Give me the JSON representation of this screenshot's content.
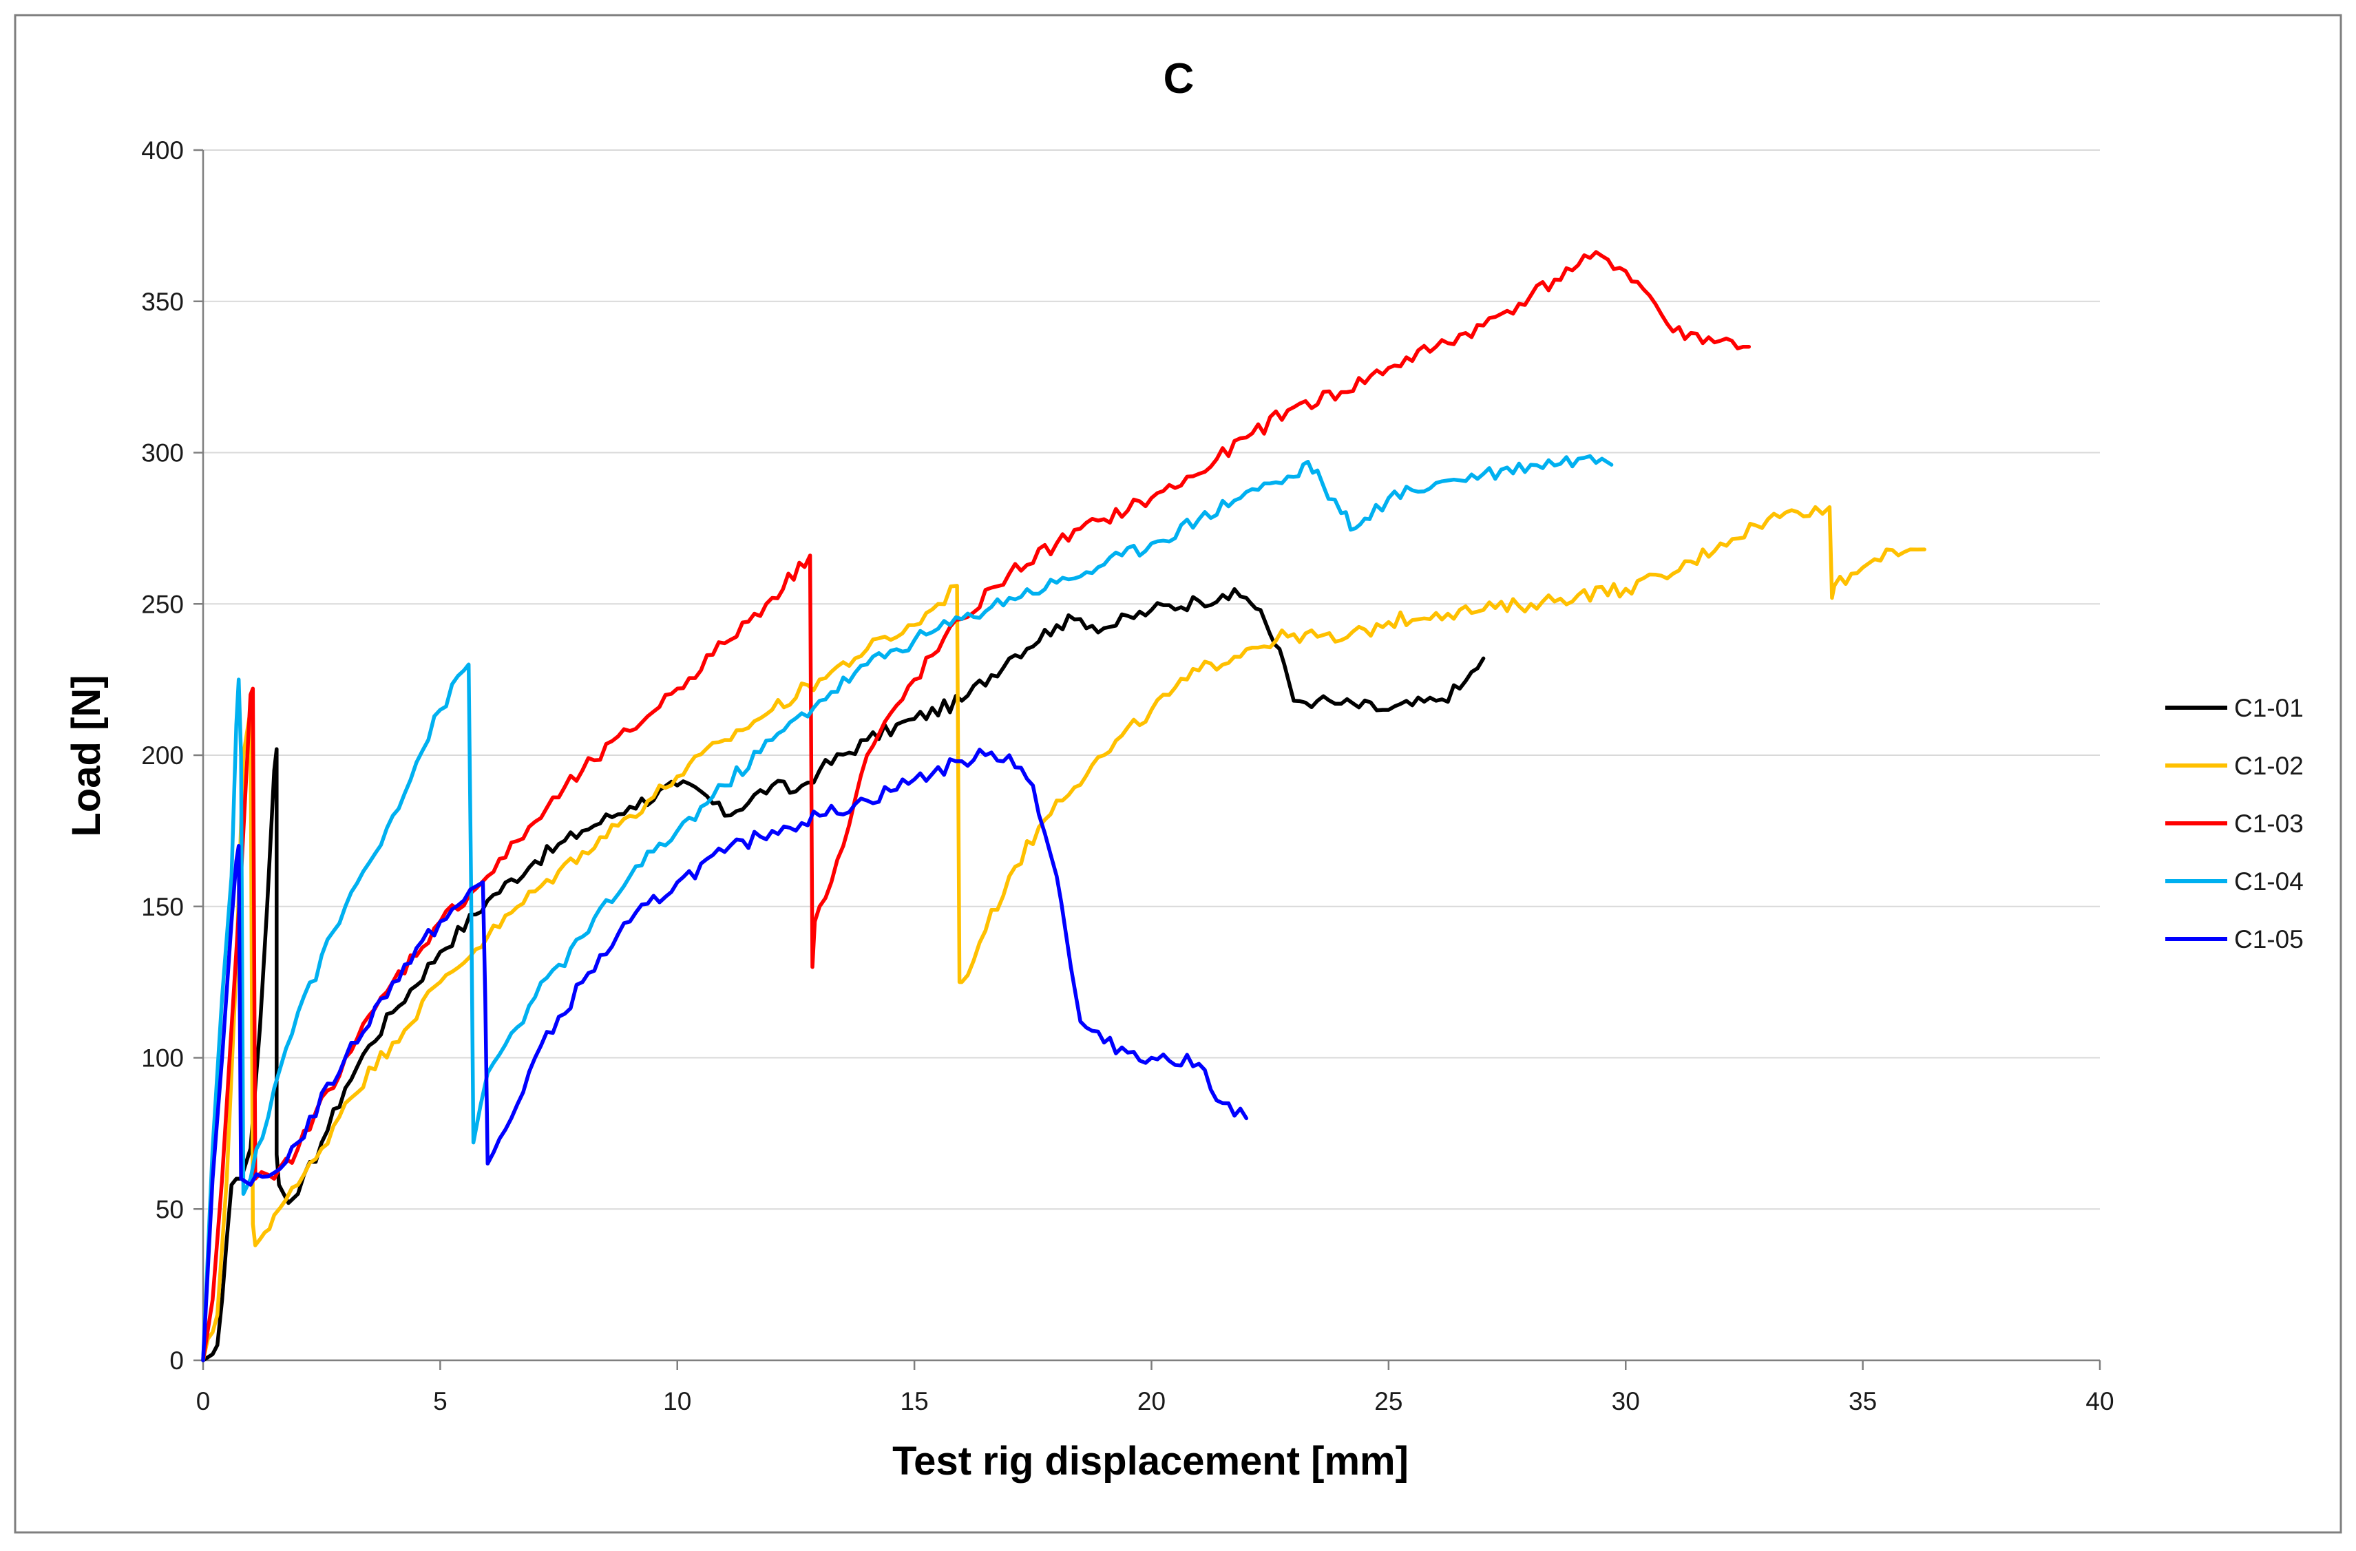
{
  "chart_data": {
    "type": "line",
    "title": "C",
    "xlabel": "Test rig displacement [mm]",
    "ylabel": "Load [N]",
    "xlim": [
      0,
      40
    ],
    "ylim": [
      0,
      400
    ],
    "xticks": [
      "0",
      "5",
      "10",
      "15",
      "20",
      "25",
      "30",
      "35",
      "40"
    ],
    "yticks": [
      "0",
      "50",
      "100",
      "150",
      "200",
      "250",
      "300",
      "350",
      "400"
    ],
    "grid": "horizontal",
    "legend_position": "right",
    "series": [
      {
        "name": "C1-01",
        "color": "#000000",
        "x": [
          0,
          0.2,
          0.3,
          0.4,
          0.5,
          0.6,
          0.7,
          0.8,
          1.0,
          1.2,
          1.35,
          1.45,
          1.5,
          1.55,
          1.55,
          1.6,
          1.8,
          2.0,
          2.5,
          3,
          3.5,
          4,
          5,
          6,
          7,
          8,
          9,
          10,
          10.5,
          11,
          12,
          12.5,
          13,
          14,
          15,
          16,
          17,
          18,
          18.5,
          19,
          20,
          21,
          21.5,
          22,
          22.3,
          22.5,
          22.8,
          23,
          23.5,
          24,
          25,
          26,
          26.5,
          27
        ],
        "y": [
          0,
          2,
          5,
          20,
          40,
          58,
          60,
          60,
          70,
          110,
          150,
          180,
          195,
          202,
          68,
          58,
          52,
          55,
          72,
          90,
          104,
          115,
          135,
          152,
          165,
          175,
          183,
          190,
          188,
          180,
          190,
          188,
          195,
          205,
          212,
          218,
          232,
          243,
          245,
          242,
          248,
          251,
          253,
          252,
          248,
          240,
          230,
          218,
          218,
          217,
          215,
          218,
          222,
          232
        ]
      },
      {
        "name": "C1-02",
        "color": "#ffc000",
        "x": [
          0,
          0.3,
          0.5,
          0.7,
          0.85,
          1.0,
          1.05,
          1.1,
          1.2,
          1.5,
          2,
          2.5,
          3,
          4,
          5,
          6,
          7,
          8,
          9,
          10,
          11,
          12,
          13,
          14,
          15,
          15.5,
          15.9,
          15.95,
          16,
          16.5,
          17,
          18,
          19,
          20,
          21,
          22,
          23,
          24,
          25,
          26,
          27,
          28,
          29,
          30,
          31,
          32,
          33,
          34,
          34.3,
          34.35,
          34.4,
          35,
          35.5,
          36,
          36.3
        ],
        "y": [
          0,
          15,
          60,
          130,
          200,
          215,
          45,
          38,
          40,
          48,
          58,
          70,
          85,
          105,
          125,
          140,
          155,
          168,
          180,
          193,
          205,
          215,
          225,
          235,
          243,
          250,
          256,
          125,
          125,
          142,
          160,
          185,
          200,
          215,
          228,
          235,
          240,
          238,
          244,
          247,
          248,
          250,
          253,
          255,
          260,
          270,
          278,
          282,
          282,
          252,
          256,
          262,
          268,
          268,
          268
        ]
      },
      {
        "name": "C1-03",
        "color": "#ff0000",
        "x": [
          0,
          0.2,
          0.4,
          0.6,
          0.8,
          1.0,
          1.05,
          1.1,
          1.5,
          2,
          3,
          4,
          5,
          6,
          7,
          8,
          9,
          10,
          11,
          12,
          12.8,
          12.85,
          12.9,
          13,
          13.5,
          14,
          15,
          16,
          17,
          18,
          19,
          20,
          21,
          22,
          23,
          24,
          25,
          26,
          27,
          28,
          29,
          29.5,
          30,
          30.5,
          31,
          32,
          32.6
        ],
        "y": [
          0,
          20,
          60,
          110,
          160,
          220,
          222,
          60,
          60,
          70,
          100,
          125,
          145,
          160,
          178,
          195,
          208,
          222,
          237,
          252,
          266,
          130,
          145,
          150,
          170,
          200,
          225,
          245,
          260,
          270,
          278,
          285,
          293,
          305,
          315,
          320,
          328,
          335,
          342,
          352,
          362,
          365,
          360,
          352,
          340,
          337,
          335
        ]
      },
      {
        "name": "C1-04",
        "color": "#00b0f0",
        "x": [
          0,
          0.2,
          0.4,
          0.6,
          0.7,
          0.75,
          0.8,
          0.85,
          1.0,
          1.5,
          2,
          3,
          4,
          5,
          5.5,
          5.6,
          5.65,
          5.7,
          6,
          7,
          8,
          9,
          10,
          11,
          12,
          13,
          14,
          15,
          16,
          17,
          18,
          19,
          20,
          21,
          22,
          23,
          23.3,
          23.6,
          24,
          24.3,
          24.6,
          25,
          26,
          27,
          28,
          29,
          29.5,
          29.7
        ],
        "y": [
          0,
          70,
          120,
          160,
          210,
          225,
          200,
          55,
          60,
          90,
          115,
          150,
          180,
          215,
          228,
          230,
          160,
          72,
          95,
          120,
          140,
          160,
          175,
          190,
          205,
          218,
          230,
          238,
          245,
          252,
          257,
          263,
          270,
          278,
          287,
          292,
          297,
          290,
          280,
          275,
          278,
          285,
          290,
          293,
          296,
          298,
          298,
          296
        ]
      },
      {
        "name": "C1-05",
        "color": "#0000ff",
        "x": [
          0,
          0.1,
          0.2,
          0.4,
          0.6,
          0.7,
          0.75,
          0.8,
          1.0,
          1.5,
          2,
          3,
          4,
          5,
          5.5,
          5.9,
          5.95,
          6,
          6.5,
          7,
          8,
          9,
          10,
          11,
          12,
          13,
          14,
          15,
          16,
          16.5,
          17,
          17.5,
          18,
          18.3,
          18.5,
          19,
          20,
          21,
          21.5,
          22
        ],
        "y": [
          0,
          30,
          60,
          100,
          145,
          165,
          170,
          60,
          58,
          62,
          72,
          100,
          125,
          145,
          152,
          158,
          120,
          65,
          80,
          100,
          125,
          145,
          158,
          168,
          175,
          180,
          185,
          192,
          198,
          200,
          200,
          190,
          160,
          130,
          112,
          105,
          100,
          98,
          85,
          80
        ]
      }
    ]
  }
}
